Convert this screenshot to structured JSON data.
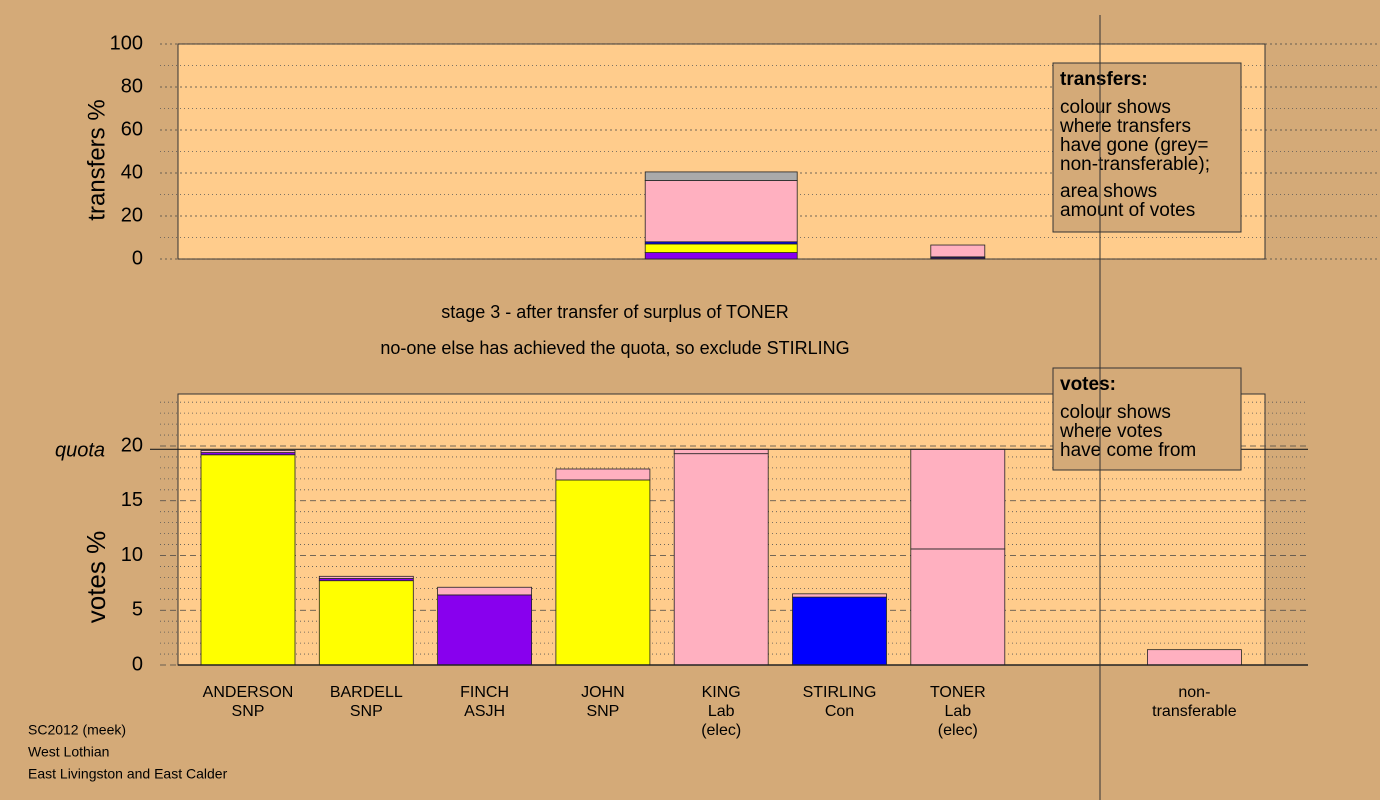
{
  "chart_data": [
    {
      "type": "bar",
      "y_label": "transfers %",
      "ylim": [
        0,
        100
      ],
      "yticks": [
        0,
        20,
        40,
        60,
        80,
        100
      ],
      "minor_yticks": [
        10,
        30,
        50,
        70,
        90
      ],
      "grid": true,
      "series": [
        {
          "color": "#8800ee",
          "values": [
            0,
            0,
            0,
            0,
            3,
            0,
            0.5,
            null,
            0
          ]
        },
        {
          "color": "#ffff00",
          "values": [
            0,
            0,
            0,
            0,
            4,
            0,
            0,
            null,
            0
          ]
        },
        {
          "color": "#0000ff",
          "values": [
            0,
            0,
            0,
            0,
            1,
            0,
            0.5,
            null,
            0
          ]
        },
        {
          "color": "#ffb0c0",
          "values": [
            0,
            0,
            0,
            0,
            28.5,
            0,
            5.5,
            null,
            0
          ]
        },
        {
          "color": "#aaaaaa",
          "values": [
            0,
            0,
            0,
            0,
            4,
            0,
            0,
            null,
            0
          ]
        }
      ],
      "note": {
        "title": "transfers:",
        "lines": [
          "colour shows",
          "where transfers",
          "have gone (grey=",
          "non-transferable);",
          "area shows",
          "amount of votes"
        ]
      }
    },
    {
      "type": "bar",
      "title": "stage 3 - after transfer of surplus of TONER",
      "subtitle": "no-one else has achieved the quota, so exclude STIRLING",
      "y_label": "votes %",
      "categories": [
        [
          "ANDERSON",
          "SNP"
        ],
        [
          "BARDELL",
          "SNP"
        ],
        [
          "FINCH",
          "ASJH"
        ],
        [
          "JOHN",
          "SNP"
        ],
        [
          "KING",
          "Lab",
          "(elec)"
        ],
        [
          "STIRLING",
          "Con"
        ],
        [
          "TONER",
          "Lab",
          "(elec)"
        ],
        null,
        [
          "non-",
          "transferable"
        ]
      ],
      "ylim": [
        0,
        24.75
      ],
      "yticks": [
        0,
        5,
        10,
        15,
        20
      ],
      "minor_yticks": [
        1,
        2,
        3,
        4,
        6,
        7,
        8,
        9,
        11,
        12,
        13,
        14,
        16,
        17,
        18,
        19,
        21,
        22,
        23,
        24
      ],
      "grid": true,
      "quota": {
        "value": 19.7,
        "label": "quota"
      },
      "series": [
        {
          "color": "#ffff00",
          "values": [
            19.2,
            7.7,
            0,
            16.9,
            0,
            0,
            0,
            null,
            0
          ]
        },
        {
          "color": "#8800ee",
          "values": [
            0.2,
            0.2,
            6.4,
            0,
            0,
            0,
            0,
            null,
            0
          ]
        },
        {
          "color": "#0000ff",
          "values": [
            0,
            0,
            0,
            0,
            0,
            6.2,
            0,
            null,
            0
          ]
        },
        {
          "color": "#ffb0c0",
          "values": [
            0,
            0,
            0,
            0,
            19.3,
            0,
            10.6,
            null,
            0
          ]
        },
        {
          "color": "#ffb0c0",
          "values": [
            0.2,
            0.2,
            0.7,
            1.0,
            0.4,
            0.3,
            9.1,
            null,
            1.4
          ]
        }
      ],
      "note": {
        "title": "votes:",
        "lines": [
          "colour shows",
          "where votes",
          "have come from"
        ]
      }
    }
  ],
  "footer": [
    "SC2012 (meek)",
    "West Lothian",
    "East Livingston and East Calder"
  ]
}
